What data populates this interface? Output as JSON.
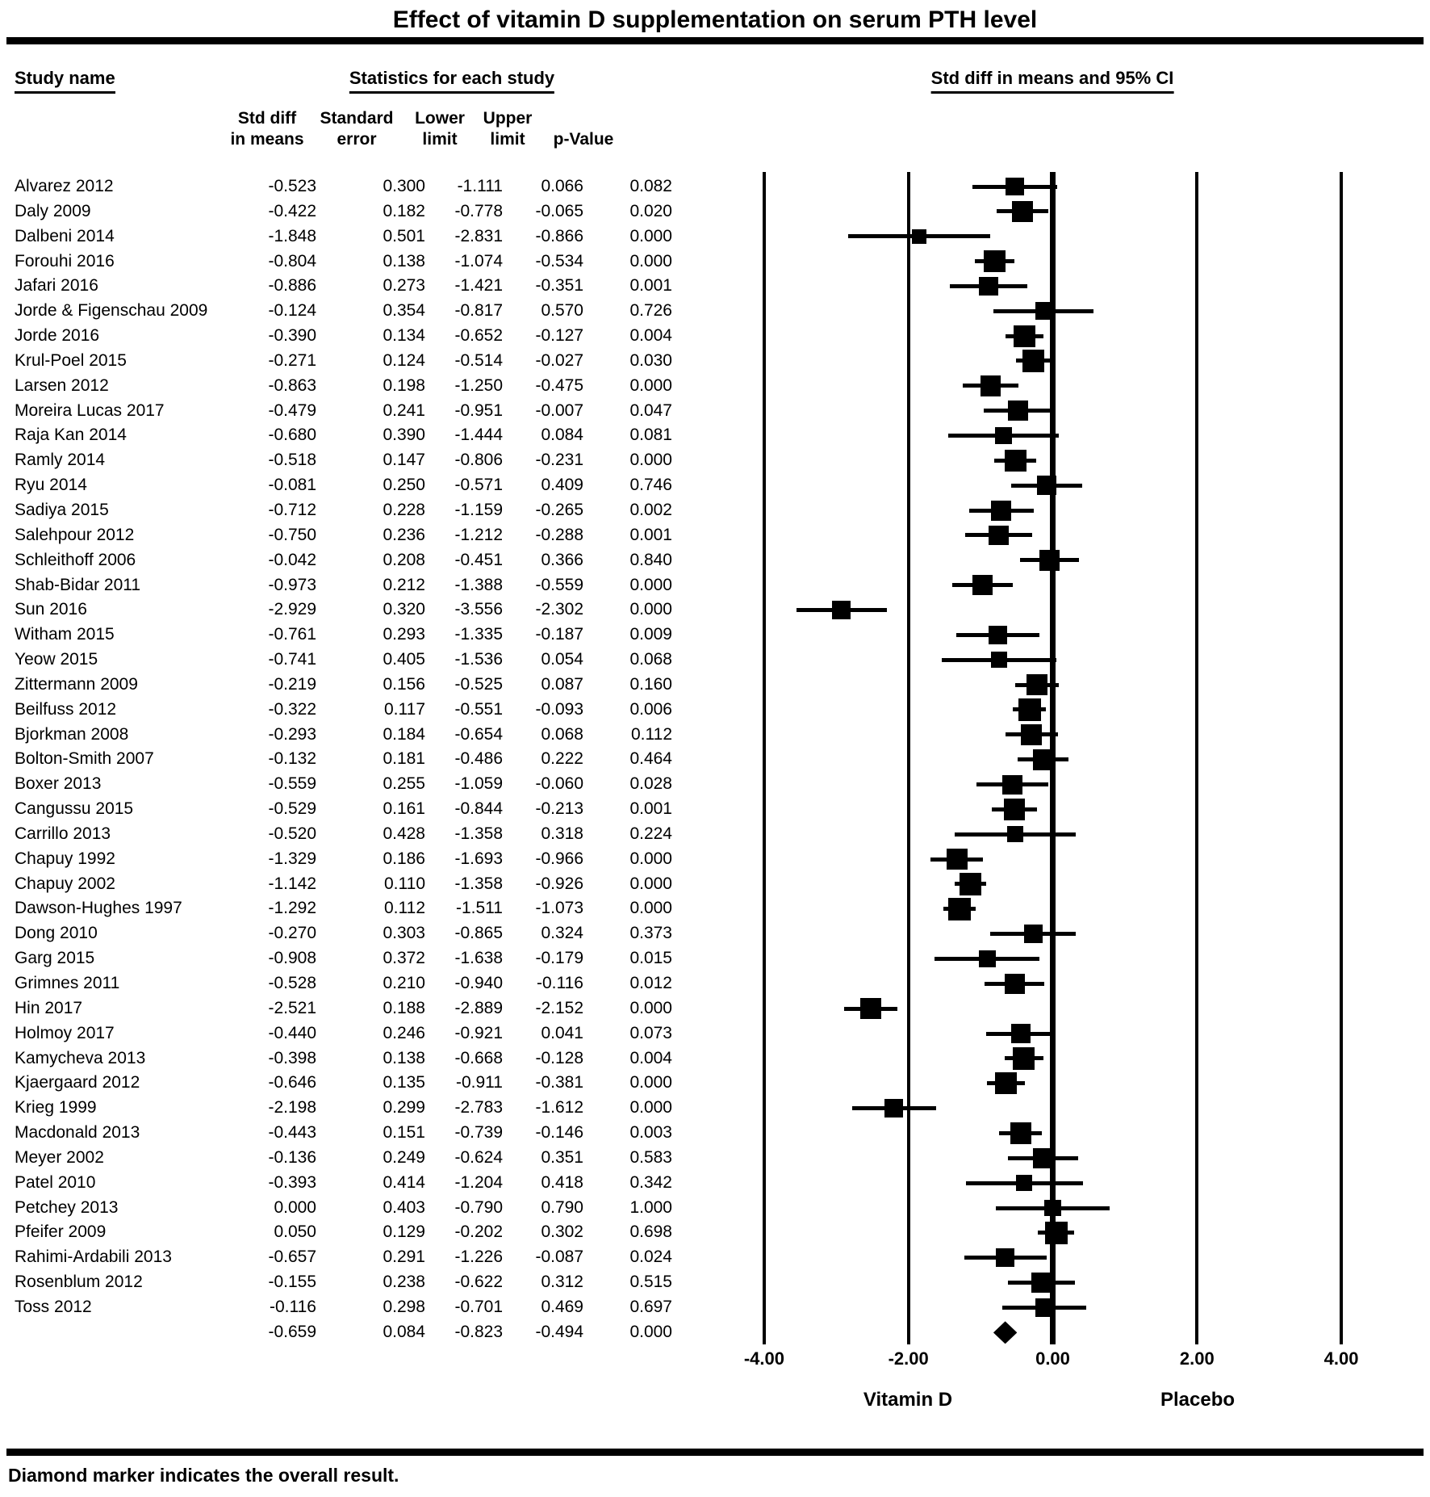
{
  "title": "Effect of vitamin D supplementation on serum PTH level",
  "columns": {
    "study": "Study name",
    "stats_group": "Statistics for each study",
    "plot_group": "Std diff in means and 95% CI",
    "subheaders": [
      {
        "line1": "Std diff",
        "line2": "in means"
      },
      {
        "line1": "Standard",
        "line2": "error"
      },
      {
        "line1": "Lower",
        "line2": "limit"
      },
      {
        "line1": "Upper",
        "line2": "limit"
      },
      {
        "line1": "",
        "line2": "p-Value"
      }
    ]
  },
  "axis": {
    "ticks": [
      {
        "label": "-4.00",
        "value": -4
      },
      {
        "label": "-2.00",
        "value": -2
      },
      {
        "label": "0.00",
        "value": 0
      },
      {
        "label": "2.00",
        "value": 2
      },
      {
        "label": "4.00",
        "value": 4
      }
    ],
    "left_label": "Vitamin D",
    "right_label": "Placebo"
  },
  "footer": "Diamond marker indicates the overall result.",
  "colors": {
    "ink": "#000000",
    "background": "#ffffff"
  },
  "chart_data": {
    "type": "forest",
    "x_range": [
      -4,
      4
    ],
    "marker_note": "square size inversely proportional to standard error; diamond = overall",
    "studies": [
      {
        "name": "Alvarez 2012",
        "std_diff": -0.523,
        "std_err": 0.3,
        "lower": -1.111,
        "upper": 0.066,
        "p": 0.082
      },
      {
        "name": "Daly 2009",
        "std_diff": -0.422,
        "std_err": 0.182,
        "lower": -0.778,
        "upper": -0.065,
        "p": 0.02
      },
      {
        "name": "Dalbeni 2014",
        "std_diff": -1.848,
        "std_err": 0.501,
        "lower": -2.831,
        "upper": -0.866,
        "p": 0.0
      },
      {
        "name": "Forouhi 2016",
        "std_diff": -0.804,
        "std_err": 0.138,
        "lower": -1.074,
        "upper": -0.534,
        "p": 0.0
      },
      {
        "name": "Jafari 2016",
        "std_diff": -0.886,
        "std_err": 0.273,
        "lower": -1.421,
        "upper": -0.351,
        "p": 0.001
      },
      {
        "name": "Jorde & Figenschau 2009",
        "std_diff": -0.124,
        "std_err": 0.354,
        "lower": -0.817,
        "upper": 0.57,
        "p": 0.726
      },
      {
        "name": "Jorde 2016",
        "std_diff": -0.39,
        "std_err": 0.134,
        "lower": -0.652,
        "upper": -0.127,
        "p": 0.004
      },
      {
        "name": "Krul-Poel 2015",
        "std_diff": -0.271,
        "std_err": 0.124,
        "lower": -0.514,
        "upper": -0.027,
        "p": 0.03
      },
      {
        "name": "Larsen 2012",
        "std_diff": -0.863,
        "std_err": 0.198,
        "lower": -1.25,
        "upper": -0.475,
        "p": 0.0
      },
      {
        "name": "Moreira Lucas 2017",
        "std_diff": -0.479,
        "std_err": 0.241,
        "lower": -0.951,
        "upper": -0.007,
        "p": 0.047
      },
      {
        "name": "Raja Kan 2014",
        "std_diff": -0.68,
        "std_err": 0.39,
        "lower": -1.444,
        "upper": 0.084,
        "p": 0.081
      },
      {
        "name": "Ramly 2014",
        "std_diff": -0.518,
        "std_err": 0.147,
        "lower": -0.806,
        "upper": -0.231,
        "p": 0.0
      },
      {
        "name": "Ryu 2014",
        "std_diff": -0.081,
        "std_err": 0.25,
        "lower": -0.571,
        "upper": 0.409,
        "p": 0.746
      },
      {
        "name": "Sadiya 2015",
        "std_diff": -0.712,
        "std_err": 0.228,
        "lower": -1.159,
        "upper": -0.265,
        "p": 0.002
      },
      {
        "name": "Salehpour 2012",
        "std_diff": -0.75,
        "std_err": 0.236,
        "lower": -1.212,
        "upper": -0.288,
        "p": 0.001
      },
      {
        "name": "Schleithoff 2006",
        "std_diff": -0.042,
        "std_err": 0.208,
        "lower": -0.451,
        "upper": 0.366,
        "p": 0.84
      },
      {
        "name": "Shab-Bidar 2011",
        "std_diff": -0.973,
        "std_err": 0.212,
        "lower": -1.388,
        "upper": -0.559,
        "p": 0.0
      },
      {
        "name": "Sun 2016",
        "std_diff": -2.929,
        "std_err": 0.32,
        "lower": -3.556,
        "upper": -2.302,
        "p": 0.0
      },
      {
        "name": "Witham 2015",
        "std_diff": -0.761,
        "std_err": 0.293,
        "lower": -1.335,
        "upper": -0.187,
        "p": 0.009
      },
      {
        "name": "Yeow 2015",
        "std_diff": -0.741,
        "std_err": 0.405,
        "lower": -1.536,
        "upper": 0.054,
        "p": 0.068
      },
      {
        "name": "Zittermann 2009",
        "std_diff": -0.219,
        "std_err": 0.156,
        "lower": -0.525,
        "upper": 0.087,
        "p": 0.16
      },
      {
        "name": "Beilfuss 2012",
        "std_diff": -0.322,
        "std_err": 0.117,
        "lower": -0.551,
        "upper": -0.093,
        "p": 0.006
      },
      {
        "name": "Bjorkman 2008",
        "std_diff": -0.293,
        "std_err": 0.184,
        "lower": -0.654,
        "upper": 0.068,
        "p": 0.112
      },
      {
        "name": "Bolton-Smith 2007",
        "std_diff": -0.132,
        "std_err": 0.181,
        "lower": -0.486,
        "upper": 0.222,
        "p": 0.464
      },
      {
        "name": "Boxer 2013",
        "std_diff": -0.559,
        "std_err": 0.255,
        "lower": -1.059,
        "upper": -0.06,
        "p": 0.028
      },
      {
        "name": "Cangussu 2015",
        "std_diff": -0.529,
        "std_err": 0.161,
        "lower": -0.844,
        "upper": -0.213,
        "p": 0.001
      },
      {
        "name": "Carrillo 2013",
        "std_diff": -0.52,
        "std_err": 0.428,
        "lower": -1.358,
        "upper": 0.318,
        "p": 0.224
      },
      {
        "name": "Chapuy 1992",
        "std_diff": -1.329,
        "std_err": 0.186,
        "lower": -1.693,
        "upper": -0.966,
        "p": 0.0
      },
      {
        "name": "Chapuy 2002",
        "std_diff": -1.142,
        "std_err": 0.11,
        "lower": -1.358,
        "upper": -0.926,
        "p": 0.0
      },
      {
        "name": "Dawson-Hughes 1997",
        "std_diff": -1.292,
        "std_err": 0.112,
        "lower": -1.511,
        "upper": -1.073,
        "p": 0.0
      },
      {
        "name": "Dong 2010",
        "std_diff": -0.27,
        "std_err": 0.303,
        "lower": -0.865,
        "upper": 0.324,
        "p": 0.373
      },
      {
        "name": "Garg 2015",
        "std_diff": -0.908,
        "std_err": 0.372,
        "lower": -1.638,
        "upper": -0.179,
        "p": 0.015
      },
      {
        "name": "Grimnes 2011",
        "std_diff": -0.528,
        "std_err": 0.21,
        "lower": -0.94,
        "upper": -0.116,
        "p": 0.012
      },
      {
        "name": "Hin 2017",
        "std_diff": -2.521,
        "std_err": 0.188,
        "lower": -2.889,
        "upper": -2.152,
        "p": 0.0
      },
      {
        "name": "Holmoy 2017",
        "std_diff": -0.44,
        "std_err": 0.246,
        "lower": -0.921,
        "upper": 0.041,
        "p": 0.073
      },
      {
        "name": "Kamycheva 2013",
        "std_diff": -0.398,
        "std_err": 0.138,
        "lower": -0.668,
        "upper": -0.128,
        "p": 0.004
      },
      {
        "name": "Kjaergaard 2012",
        "std_diff": -0.646,
        "std_err": 0.135,
        "lower": -0.911,
        "upper": -0.381,
        "p": 0.0
      },
      {
        "name": "Krieg 1999",
        "std_diff": -2.198,
        "std_err": 0.299,
        "lower": -2.783,
        "upper": -1.612,
        "p": 0.0
      },
      {
        "name": "Macdonald 2013",
        "std_diff": -0.443,
        "std_err": 0.151,
        "lower": -0.739,
        "upper": -0.146,
        "p": 0.003
      },
      {
        "name": "Meyer 2002",
        "std_diff": -0.136,
        "std_err": 0.249,
        "lower": -0.624,
        "upper": 0.351,
        "p": 0.583
      },
      {
        "name": "Patel 2010",
        "std_diff": -0.393,
        "std_err": 0.414,
        "lower": -1.204,
        "upper": 0.418,
        "p": 0.342
      },
      {
        "name": "Petchey 2013",
        "std_diff": 0.0,
        "std_err": 0.403,
        "lower": -0.79,
        "upper": 0.79,
        "p": 1.0
      },
      {
        "name": "Pfeifer 2009",
        "std_diff": 0.05,
        "std_err": 0.129,
        "lower": -0.202,
        "upper": 0.302,
        "p": 0.698
      },
      {
        "name": "Rahimi-Ardabili 2013",
        "std_diff": -0.657,
        "std_err": 0.291,
        "lower": -1.226,
        "upper": -0.087,
        "p": 0.024
      },
      {
        "name": "Rosenblum 2012",
        "std_diff": -0.155,
        "std_err": 0.238,
        "lower": -0.622,
        "upper": 0.312,
        "p": 0.515
      },
      {
        "name": "Toss 2012",
        "std_diff": -0.116,
        "std_err": 0.298,
        "lower": -0.701,
        "upper": 0.469,
        "p": 0.697
      }
    ],
    "overall": {
      "name": "",
      "std_diff": -0.659,
      "std_err": 0.084,
      "lower": -0.823,
      "upper": -0.494,
      "p": 0.0,
      "marker": "diamond"
    }
  }
}
